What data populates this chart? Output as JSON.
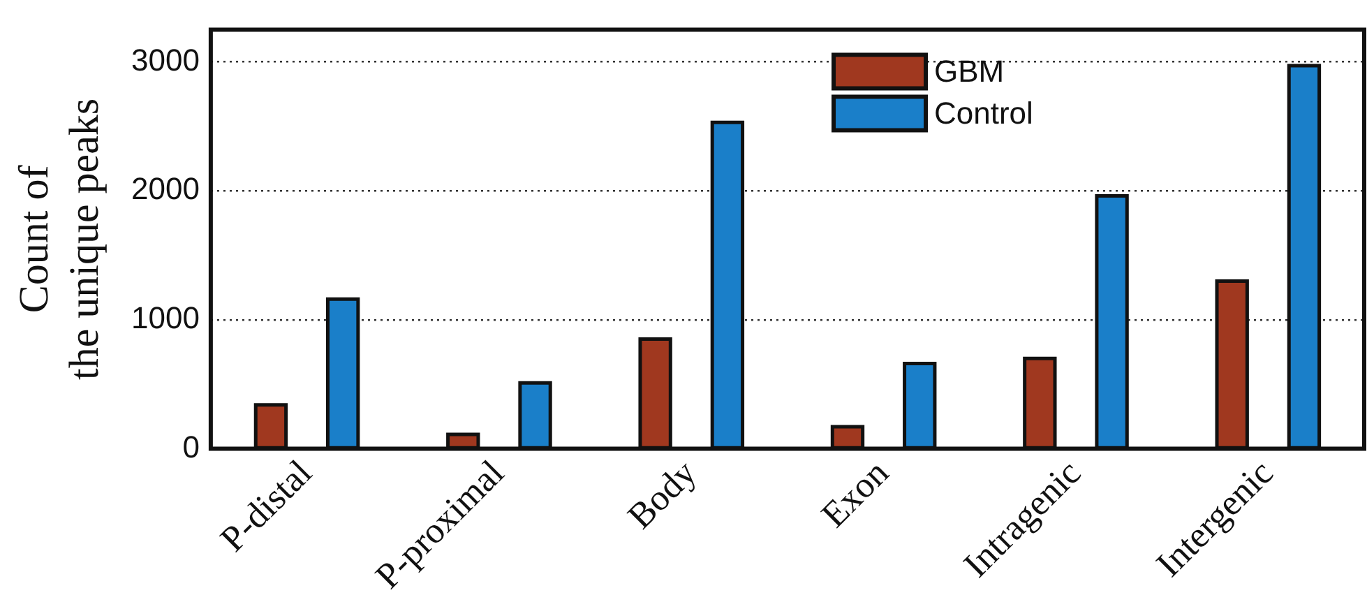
{
  "chart_data": {
    "type": "bar",
    "ylabel": "Count of\nthe unique peaks",
    "categories": [
      "P-distal",
      "P-proximal",
      "Body",
      "Exon",
      "Intragenic",
      "Intergenic"
    ],
    "series": [
      {
        "name": "GBM",
        "color": "#a0381f",
        "values": [
          340,
          110,
          850,
          170,
          700,
          1300
        ]
      },
      {
        "name": "Control",
        "color": "#1a7fc9",
        "values": [
          1160,
          510,
          2530,
          660,
          1960,
          2970
        ]
      }
    ],
    "ylim": [
      0,
      3250
    ],
    "yticks": [
      0,
      1000,
      2000,
      3000
    ],
    "grid": "y",
    "legend": "top"
  }
}
